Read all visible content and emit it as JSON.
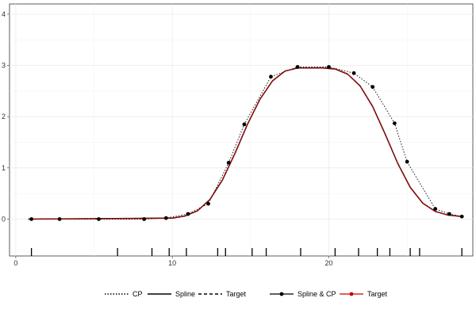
{
  "chart_data": {
    "type": "line",
    "title": "",
    "xlabel": "",
    "ylabel": "",
    "xlim": [
      -0.4,
      29.2
    ],
    "ylim": [
      -0.72,
      4.2
    ],
    "x_ticks": [
      0,
      10,
      20
    ],
    "y_ticks": [
      0,
      1,
      2,
      3,
      4
    ],
    "grid": true,
    "legend_position": "bottom",
    "control_points": [
      {
        "x": 1.0,
        "y": 0.0
      },
      {
        "x": 2.8,
        "y": 0.0
      },
      {
        "x": 5.3,
        "y": 0.0
      },
      {
        "x": 8.2,
        "y": 0.0
      },
      {
        "x": 9.6,
        "y": 0.02
      },
      {
        "x": 11.0,
        "y": 0.1
      },
      {
        "x": 12.3,
        "y": 0.3
      },
      {
        "x": 13.6,
        "y": 1.1
      },
      {
        "x": 14.6,
        "y": 1.85
      },
      {
        "x": 16.3,
        "y": 2.78
      },
      {
        "x": 18.0,
        "y": 2.97
      },
      {
        "x": 20.0,
        "y": 2.97
      },
      {
        "x": 21.6,
        "y": 2.85
      },
      {
        "x": 22.8,
        "y": 2.58
      },
      {
        "x": 24.2,
        "y": 1.87
      },
      {
        "x": 25.0,
        "y": 1.12
      },
      {
        "x": 26.8,
        "y": 0.2
      },
      {
        "x": 27.7,
        "y": 0.1
      },
      {
        "x": 28.5,
        "y": 0.05
      }
    ],
    "knots": [
      1.0,
      6.5,
      8.7,
      9.8,
      10.9,
      12.9,
      13.4,
      15.1,
      16.0,
      18.2,
      20.4,
      21.9,
      23.1,
      23.9,
      25.2,
      25.8,
      28.5
    ],
    "series": [
      {
        "name": "Target",
        "color": "#000000",
        "dash": "dashed",
        "x": [
          0.8,
          10.0,
          10.8,
          11.6,
          12.4,
          13.2,
          14.0,
          14.8,
          15.6,
          16.4,
          17.2,
          18.0,
          18.8,
          19.6,
          20.4,
          21.2,
          22.0,
          22.8,
          23.6,
          24.4,
          25.2,
          26.0,
          26.8,
          27.6,
          28.5
        ],
        "y": [
          0.0,
          0.02,
          0.06,
          0.16,
          0.38,
          0.76,
          1.28,
          1.85,
          2.34,
          2.7,
          2.89,
          2.95,
          2.95,
          2.95,
          2.93,
          2.83,
          2.6,
          2.2,
          1.66,
          1.09,
          0.62,
          0.31,
          0.15,
          0.08,
          0.05
        ]
      },
      {
        "name": "Spline",
        "color": "#000000",
        "dash": "solid",
        "x": [
          0.8,
          10.0,
          10.8,
          11.6,
          12.4,
          13.2,
          14.0,
          14.8,
          15.6,
          16.4,
          17.2,
          18.0,
          18.8,
          19.6,
          20.4,
          21.2,
          22.0,
          22.8,
          23.6,
          24.4,
          25.2,
          26.0,
          26.8,
          27.6,
          28.5
        ],
        "y": [
          0.0,
          0.02,
          0.06,
          0.16,
          0.38,
          0.76,
          1.28,
          1.85,
          2.34,
          2.7,
          2.89,
          2.95,
          2.95,
          2.95,
          2.93,
          2.83,
          2.6,
          2.2,
          1.66,
          1.09,
          0.62,
          0.31,
          0.15,
          0.08,
          0.05
        ]
      },
      {
        "name": "Target",
        "color": "#cc0000",
        "dash": "solid",
        "x": [
          0.8,
          10.0,
          10.8,
          11.6,
          12.4,
          13.2,
          14.0,
          14.8,
          15.6,
          16.4,
          17.2,
          18.0,
          18.8,
          19.6,
          20.4,
          21.2,
          22.0,
          22.8,
          23.6,
          24.4,
          25.2,
          26.0,
          26.8,
          27.6,
          28.5
        ],
        "y": [
          0.0,
          0.02,
          0.06,
          0.16,
          0.38,
          0.76,
          1.28,
          1.85,
          2.34,
          2.7,
          2.89,
          2.95,
          2.95,
          2.95,
          2.93,
          2.83,
          2.6,
          2.2,
          1.66,
          1.09,
          0.62,
          0.31,
          0.15,
          0.08,
          0.05
        ]
      }
    ],
    "legend": [
      {
        "label": "CP",
        "style": "dotted",
        "color": "#000000",
        "point": false
      },
      {
        "label": "Spline",
        "style": "solid",
        "color": "#000000",
        "point": false
      },
      {
        "label": "Target",
        "style": "dashed",
        "color": "#000000",
        "point": false
      },
      {
        "label": "Spline & CP",
        "style": "solid",
        "color": "#000000",
        "point": true
      },
      {
        "label": "Target",
        "style": "solid",
        "color": "#cc0000",
        "point": true
      }
    ]
  }
}
